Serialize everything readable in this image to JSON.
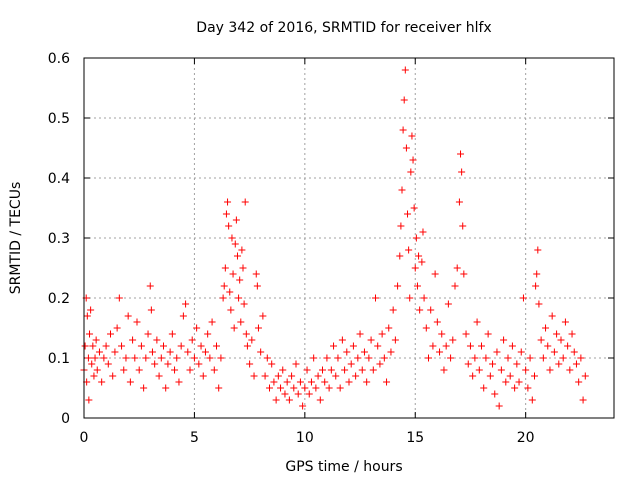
{
  "chart_data": {
    "type": "scatter",
    "title": "Day 342 of 2016, SRMTID for receiver hlfx",
    "xlabel": "GPS time / hours",
    "ylabel": "SRMTID / TECUs",
    "xlim": [
      0,
      24
    ],
    "ylim": [
      0,
      0.6
    ],
    "xticks": [
      0,
      5,
      10,
      15,
      20
    ],
    "xtick_labels": [
      "0",
      "5",
      "10",
      "15",
      "20"
    ],
    "yticks": [
      0,
      0.1,
      0.2,
      0.3,
      0.4,
      0.5,
      0.6
    ],
    "ytick_labels": [
      "0",
      "0.1",
      "0.2",
      "0.3",
      "0.4",
      "0.5",
      "0.6"
    ],
    "grid": true,
    "marker": "+",
    "color": "#ff0000",
    "series": [
      {
        "name": "SRMTID",
        "points": [
          [
            0.0,
            0.08
          ],
          [
            0.05,
            0.12
          ],
          [
            0.1,
            0.2
          ],
          [
            0.12,
            0.06
          ],
          [
            0.15,
            0.17
          ],
          [
            0.2,
            0.1
          ],
          [
            0.22,
            0.03
          ],
          [
            0.25,
            0.14
          ],
          [
            0.3,
            0.18
          ],
          [
            0.35,
            0.09
          ],
          [
            0.4,
            0.12
          ],
          [
            0.45,
            0.07
          ],
          [
            0.5,
            0.1
          ],
          [
            0.55,
            0.13
          ],
          [
            0.6,
            0.08
          ],
          [
            0.7,
            0.11
          ],
          [
            0.8,
            0.06
          ],
          [
            0.9,
            0.1
          ],
          [
            1.0,
            0.12
          ],
          [
            1.1,
            0.09
          ],
          [
            1.2,
            0.14
          ],
          [
            1.3,
            0.07
          ],
          [
            1.4,
            0.11
          ],
          [
            1.5,
            0.15
          ],
          [
            1.6,
            0.2
          ],
          [
            1.7,
            0.12
          ],
          [
            1.8,
            0.08
          ],
          [
            1.9,
            0.1
          ],
          [
            2.0,
            0.17
          ],
          [
            2.1,
            0.06
          ],
          [
            2.2,
            0.13
          ],
          [
            2.3,
            0.1
          ],
          [
            2.4,
            0.16
          ],
          [
            2.5,
            0.08
          ],
          [
            2.6,
            0.12
          ],
          [
            2.7,
            0.05
          ],
          [
            2.8,
            0.1
          ],
          [
            2.9,
            0.14
          ],
          [
            3.0,
            0.22
          ],
          [
            3.05,
            0.18
          ],
          [
            3.1,
            0.11
          ],
          [
            3.2,
            0.09
          ],
          [
            3.3,
            0.13
          ],
          [
            3.4,
            0.07
          ],
          [
            3.5,
            0.1
          ],
          [
            3.6,
            0.12
          ],
          [
            3.7,
            0.05
          ],
          [
            3.8,
            0.09
          ],
          [
            3.9,
            0.11
          ],
          [
            4.0,
            0.14
          ],
          [
            4.1,
            0.08
          ],
          [
            4.2,
            0.1
          ],
          [
            4.3,
            0.06
          ],
          [
            4.4,
            0.12
          ],
          [
            4.5,
            0.17
          ],
          [
            4.6,
            0.19
          ],
          [
            4.7,
            0.11
          ],
          [
            4.8,
            0.08
          ],
          [
            4.9,
            0.13
          ],
          [
            5.0,
            0.1
          ],
          [
            5.1,
            0.15
          ],
          [
            5.2,
            0.09
          ],
          [
            5.3,
            0.12
          ],
          [
            5.4,
            0.07
          ],
          [
            5.5,
            0.11
          ],
          [
            5.6,
            0.14
          ],
          [
            5.7,
            0.1
          ],
          [
            5.8,
            0.16
          ],
          [
            5.9,
            0.08
          ],
          [
            6.0,
            0.12
          ],
          [
            6.1,
            0.05
          ],
          [
            6.2,
            0.1
          ],
          [
            6.3,
            0.2
          ],
          [
            6.35,
            0.22
          ],
          [
            6.4,
            0.25
          ],
          [
            6.45,
            0.34
          ],
          [
            6.5,
            0.36
          ],
          [
            6.55,
            0.32
          ],
          [
            6.6,
            0.21
          ],
          [
            6.65,
            0.18
          ],
          [
            6.7,
            0.3
          ],
          [
            6.75,
            0.24
          ],
          [
            6.8,
            0.15
          ],
          [
            6.85,
            0.29
          ],
          [
            6.9,
            0.33
          ],
          [
            6.95,
            0.27
          ],
          [
            7.0,
            0.2
          ],
          [
            7.05,
            0.23
          ],
          [
            7.1,
            0.16
          ],
          [
            7.15,
            0.28
          ],
          [
            7.2,
            0.25
          ],
          [
            7.25,
            0.19
          ],
          [
            7.3,
            0.36
          ],
          [
            7.35,
            0.14
          ],
          [
            7.4,
            0.12
          ],
          [
            7.5,
            0.09
          ],
          [
            7.6,
            0.13
          ],
          [
            7.7,
            0.07
          ],
          [
            7.8,
            0.24
          ],
          [
            7.85,
            0.22
          ],
          [
            7.9,
            0.15
          ],
          [
            8.0,
            0.11
          ],
          [
            8.1,
            0.17
          ],
          [
            8.2,
            0.07
          ],
          [
            8.3,
            0.1
          ],
          [
            8.4,
            0.05
          ],
          [
            8.5,
            0.09
          ],
          [
            8.6,
            0.06
          ],
          [
            8.7,
            0.03
          ],
          [
            8.8,
            0.07
          ],
          [
            8.9,
            0.05
          ],
          [
            9.0,
            0.08
          ],
          [
            9.1,
            0.04
          ],
          [
            9.2,
            0.06
          ],
          [
            9.3,
            0.03
          ],
          [
            9.4,
            0.07
          ],
          [
            9.5,
            0.05
          ],
          [
            9.6,
            0.09
          ],
          [
            9.7,
            0.04
          ],
          [
            9.8,
            0.06
          ],
          [
            9.9,
            0.02
          ],
          [
            10.0,
            0.05
          ],
          [
            10.1,
            0.08
          ],
          [
            10.2,
            0.04
          ],
          [
            10.3,
            0.06
          ],
          [
            10.4,
            0.1
          ],
          [
            10.5,
            0.05
          ],
          [
            10.6,
            0.07
          ],
          [
            10.7,
            0.03
          ],
          [
            10.8,
            0.08
          ],
          [
            10.9,
            0.06
          ],
          [
            11.0,
            0.1
          ],
          [
            11.1,
            0.05
          ],
          [
            11.2,
            0.08
          ],
          [
            11.3,
            0.12
          ],
          [
            11.4,
            0.07
          ],
          [
            11.5,
            0.1
          ],
          [
            11.6,
            0.05
          ],
          [
            11.7,
            0.13
          ],
          [
            11.8,
            0.08
          ],
          [
            11.9,
            0.11
          ],
          [
            12.0,
            0.06
          ],
          [
            12.1,
            0.09
          ],
          [
            12.2,
            0.12
          ],
          [
            12.3,
            0.07
          ],
          [
            12.4,
            0.1
          ],
          [
            12.5,
            0.14
          ],
          [
            12.6,
            0.08
          ],
          [
            12.7,
            0.11
          ],
          [
            12.8,
            0.06
          ],
          [
            12.9,
            0.1
          ],
          [
            13.0,
            0.13
          ],
          [
            13.1,
            0.08
          ],
          [
            13.2,
            0.2
          ],
          [
            13.3,
            0.12
          ],
          [
            13.4,
            0.09
          ],
          [
            13.5,
            0.14
          ],
          [
            13.6,
            0.1
          ],
          [
            13.7,
            0.06
          ],
          [
            13.8,
            0.15
          ],
          [
            13.9,
            0.11
          ],
          [
            14.0,
            0.18
          ],
          [
            14.1,
            0.13
          ],
          [
            14.2,
            0.22
          ],
          [
            14.3,
            0.27
          ],
          [
            14.35,
            0.32
          ],
          [
            14.4,
            0.38
          ],
          [
            14.45,
            0.48
          ],
          [
            14.5,
            0.53
          ],
          [
            14.55,
            0.58
          ],
          [
            14.6,
            0.45
          ],
          [
            14.65,
            0.34
          ],
          [
            14.7,
            0.28
          ],
          [
            14.75,
            0.2
          ],
          [
            14.8,
            0.41
          ],
          [
            14.85,
            0.47
          ],
          [
            14.9,
            0.43
          ],
          [
            14.95,
            0.35
          ],
          [
            15.0,
            0.25
          ],
          [
            15.05,
            0.3
          ],
          [
            15.1,
            0.22
          ],
          [
            15.15,
            0.27
          ],
          [
            15.2,
            0.18
          ],
          [
            15.3,
            0.26
          ],
          [
            15.35,
            0.31
          ],
          [
            15.4,
            0.2
          ],
          [
            15.5,
            0.15
          ],
          [
            15.6,
            0.1
          ],
          [
            15.7,
            0.18
          ],
          [
            15.8,
            0.12
          ],
          [
            15.9,
            0.24
          ],
          [
            16.0,
            0.16
          ],
          [
            16.1,
            0.11
          ],
          [
            16.2,
            0.14
          ],
          [
            16.3,
            0.08
          ],
          [
            16.4,
            0.12
          ],
          [
            16.5,
            0.19
          ],
          [
            16.6,
            0.1
          ],
          [
            16.7,
            0.13
          ],
          [
            16.8,
            0.22
          ],
          [
            16.9,
            0.25
          ],
          [
            17.0,
            0.36
          ],
          [
            17.05,
            0.44
          ],
          [
            17.1,
            0.41
          ],
          [
            17.15,
            0.32
          ],
          [
            17.2,
            0.24
          ],
          [
            17.3,
            0.14
          ],
          [
            17.4,
            0.09
          ],
          [
            17.5,
            0.12
          ],
          [
            17.6,
            0.07
          ],
          [
            17.7,
            0.1
          ],
          [
            17.8,
            0.16
          ],
          [
            17.9,
            0.08
          ],
          [
            18.0,
            0.12
          ],
          [
            18.1,
            0.05
          ],
          [
            18.2,
            0.1
          ],
          [
            18.3,
            0.14
          ],
          [
            18.4,
            0.07
          ],
          [
            18.5,
            0.09
          ],
          [
            18.6,
            0.04
          ],
          [
            18.7,
            0.11
          ],
          [
            18.8,
            0.02
          ],
          [
            18.9,
            0.08
          ],
          [
            19.0,
            0.13
          ],
          [
            19.1,
            0.06
          ],
          [
            19.2,
            0.1
          ],
          [
            19.3,
            0.07
          ],
          [
            19.4,
            0.12
          ],
          [
            19.5,
            0.05
          ],
          [
            19.6,
            0.09
          ],
          [
            19.7,
            0.06
          ],
          [
            19.8,
            0.11
          ],
          [
            19.9,
            0.2
          ],
          [
            20.0,
            0.08
          ],
          [
            20.1,
            0.05
          ],
          [
            20.2,
            0.1
          ],
          [
            20.3,
            0.03
          ],
          [
            20.4,
            0.07
          ],
          [
            20.45,
            0.22
          ],
          [
            20.5,
            0.24
          ],
          [
            20.55,
            0.28
          ],
          [
            20.6,
            0.19
          ],
          [
            20.7,
            0.13
          ],
          [
            20.8,
            0.1
          ],
          [
            20.9,
            0.15
          ],
          [
            21.0,
            0.12
          ],
          [
            21.1,
            0.08
          ],
          [
            21.2,
            0.17
          ],
          [
            21.3,
            0.11
          ],
          [
            21.4,
            0.14
          ],
          [
            21.5,
            0.09
          ],
          [
            21.6,
            0.13
          ],
          [
            21.7,
            0.1
          ],
          [
            21.8,
            0.16
          ],
          [
            21.9,
            0.12
          ],
          [
            22.0,
            0.08
          ],
          [
            22.1,
            0.14
          ],
          [
            22.2,
            0.11
          ],
          [
            22.3,
            0.09
          ],
          [
            22.4,
            0.06
          ],
          [
            22.5,
            0.1
          ],
          [
            22.6,
            0.03
          ],
          [
            22.7,
            0.07
          ]
        ]
      }
    ]
  }
}
